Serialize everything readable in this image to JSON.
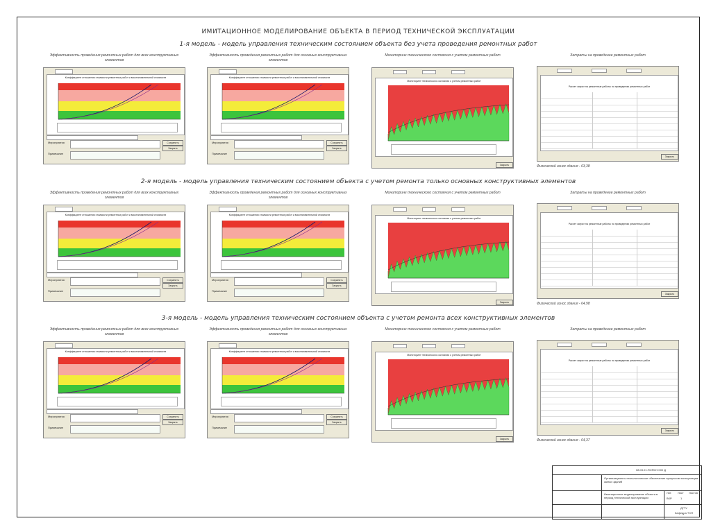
{
  "main_title": "ИМИТАЦИОННОЕ МОДЕЛИРОВАНИЕ ОБЪЕКТА В ПЕРИОД ТЕХНИЧЕСКОЙ ЭКСПЛУАТАЦИИ",
  "models": [
    {
      "title": "1-я модель - модель управления техническим состоянием объекта без учета проведения ремонтных работ",
      "physical_wear": "Физический износ здания - 63,38"
    },
    {
      "title": "2-я модель - модель управления техническим состоянием объекта с учетом ремонта только основных конструктивных элементов",
      "physical_wear": "Физический износ здания - 64,98"
    },
    {
      "title": "3-я модель - модель управления техническим состоянием объекта с учетом ремонта всех конструктивных элементов",
      "physical_wear": "Физический износ здания - 64,37"
    }
  ],
  "columns": {
    "eff_all": "Эффективность проведения ремонтных работ для всех конструктивных элементов",
    "eff_main": "Эффективность проведения ремонтных работ для основных конструктивных элементов",
    "monitoring": "Мониторинг технического состояния с учетом ремонтных работ",
    "costs": "Затраты на проведение ремонтных работ"
  },
  "window": {
    "chart_title": "Коэффициент отношения стоимости ремонтных работ к восстановительной стоимости",
    "monitoring_title": "Мониторинг технического состояния с учетом ремонтных работ",
    "costs_title": "Расчет затрат на ремонтные работы по проведению ремонтных работ",
    "button_save": "Сохранить",
    "button_close": "Закрыть",
    "apply_label": "Мероприятия",
    "note_label": "Примечание"
  },
  "stamp": {
    "doc_code": "08.03.01.ПОЯСН.000 Д",
    "org": "Организационно-технологическое обеспечение процессов эксплуатации жилых зданий",
    "sheet_title": "Имитационное моделирование объекта в период технической эксплуатации",
    "lit": "Лит.",
    "sheet": "Лист",
    "sheets": "Листов",
    "stage": "ВКР",
    "sheet_no": "1",
    "university": "ДГТУ",
    "dept": "Кафедра ТСП"
  },
  "colors": {
    "red": "#e9352c",
    "pink": "#f7a8a0",
    "yellow": "#f4ec3a",
    "green": "#3cc43c",
    "mon_red": "#e84040",
    "mon_green": "#5cd85c",
    "window_bg": "#ece9d8"
  }
}
